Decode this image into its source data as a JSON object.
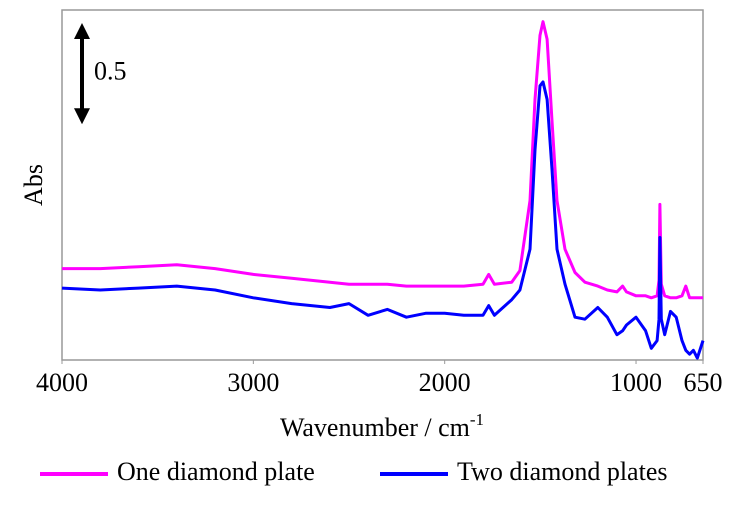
{
  "chart_data": {
    "type": "line",
    "ylabel": "Abs",
    "xlabel": {
      "text": "Wavenumber / cm",
      "superscript": "-1"
    },
    "xlim": [
      4000,
      650
    ],
    "xticks": [
      4000,
      3000,
      2000,
      1000,
      650
    ],
    "ylim": [
      0,
      1.8
    ],
    "scale_bar": 0.5,
    "x": [
      4000,
      3800,
      3600,
      3400,
      3200,
      3000,
      2800,
      2600,
      2500,
      2400,
      2300,
      2200,
      2100,
      2000,
      1900,
      1800,
      1770,
      1740,
      1650,
      1607,
      1554,
      1528,
      1502,
      1486,
      1465,
      1439,
      1413,
      1371,
      1319,
      1267,
      1200,
      1150,
      1100,
      1070,
      1050,
      1000,
      950,
      920,
      890,
      880,
      875,
      868,
      850,
      820,
      790,
      760,
      740,
      720,
      700,
      680,
      650
    ],
    "series": [
      {
        "name": "One diamond plate",
        "color": "#ff00ff",
        "values": [
          0.47,
          0.47,
          0.48,
          0.49,
          0.47,
          0.44,
          0.42,
          0.4,
          0.39,
          0.39,
          0.39,
          0.38,
          0.38,
          0.38,
          0.38,
          0.39,
          0.44,
          0.39,
          0.4,
          0.46,
          0.82,
          1.34,
          1.67,
          1.74,
          1.65,
          1.23,
          0.82,
          0.57,
          0.45,
          0.4,
          0.38,
          0.36,
          0.35,
          0.38,
          0.35,
          0.33,
          0.33,
          0.32,
          0.33,
          0.41,
          0.8,
          0.39,
          0.33,
          0.32,
          0.32,
          0.33,
          0.38,
          0.32,
          0.32,
          0.32,
          0.32
        ]
      },
      {
        "name": "Two diamond plates",
        "color": "#0000ff",
        "values": [
          0.37,
          0.36,
          0.37,
          0.38,
          0.36,
          0.32,
          0.29,
          0.27,
          0.29,
          0.23,
          0.26,
          0.22,
          0.24,
          0.24,
          0.23,
          0.23,
          0.28,
          0.23,
          0.31,
          0.36,
          0.57,
          1.08,
          1.41,
          1.43,
          1.34,
          0.98,
          0.57,
          0.39,
          0.22,
          0.21,
          0.27,
          0.22,
          0.13,
          0.15,
          0.18,
          0.22,
          0.15,
          0.06,
          0.1,
          0.21,
          0.63,
          0.21,
          0.13,
          0.25,
          0.22,
          0.1,
          0.05,
          0.03,
          0.05,
          0.01,
          0.1
        ]
      }
    ]
  }
}
